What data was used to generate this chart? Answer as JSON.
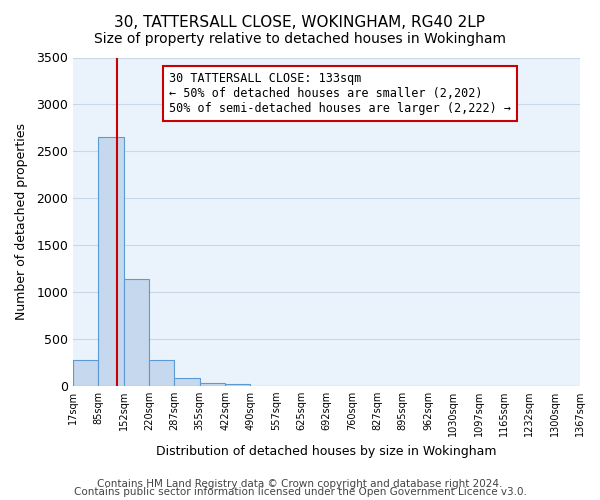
{
  "title": "30, TATTERSALL CLOSE, WOKINGHAM, RG40 2LP",
  "subtitle": "Size of property relative to detached houses in Wokingham",
  "xlabel": "Distribution of detached houses by size in Wokingham",
  "ylabel": "Number of detached properties",
  "bar_heights": [
    270,
    2650,
    1140,
    275,
    80,
    30,
    20,
    0,
    0,
    0,
    0,
    0,
    0,
    0,
    0,
    0,
    0,
    0,
    0,
    0
  ],
  "bin_labels": [
    "17sqm",
    "85sqm",
    "152sqm",
    "220sqm",
    "287sqm",
    "355sqm",
    "422sqm",
    "490sqm",
    "557sqm",
    "625sqm",
    "692sqm",
    "760sqm",
    "827sqm",
    "895sqm",
    "962sqm",
    "1030sqm",
    "1097sqm",
    "1165sqm",
    "1232sqm",
    "1300sqm",
    "1367sqm"
  ],
  "bar_color": "#c5d8ed",
  "bar_edge_color": "#5b9bd5",
  "grid_color": "#c8d8e8",
  "background_color": "#eaf3fb",
  "annotation_text": "30 TATTERSALL CLOSE: 133sqm\n← 50% of detached houses are smaller (2,202)\n50% of semi-detached houses are larger (2,222) →",
  "annotation_box_color": "#ffffff",
  "annotation_box_edge": "#cc0000",
  "vline_color": "#cc0000",
  "ylim": [
    0,
    3500
  ],
  "yticks": [
    0,
    500,
    1000,
    1500,
    2000,
    2500,
    3000,
    3500
  ],
  "footer1": "Contains HM Land Registry data © Crown copyright and database right 2024.",
  "footer2": "Contains public sector information licensed under the Open Government Licence v3.0.",
  "title_fontsize": 11,
  "subtitle_fontsize": 10,
  "annotation_fontsize": 8.5,
  "footer_fontsize": 7.5
}
